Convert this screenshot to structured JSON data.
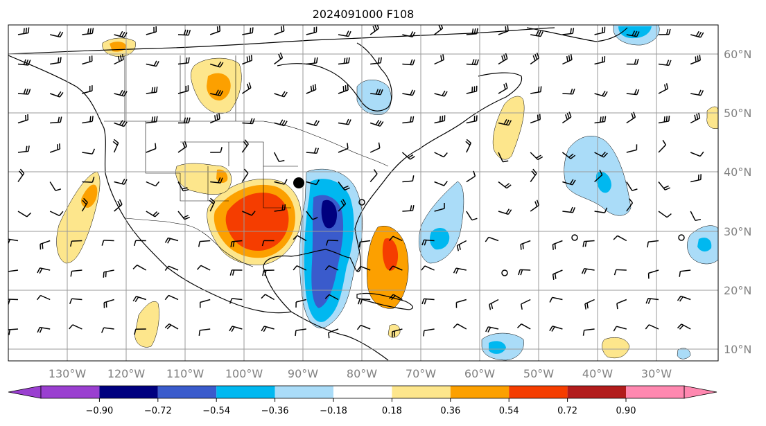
{
  "title": "2024091000 F108",
  "map": {
    "lon_labels": [
      "130°W",
      "120°W",
      "110°W",
      "100°W",
      "90°W",
      "80°W",
      "70°W",
      "60°W",
      "50°W",
      "40°W",
      "30°W"
    ],
    "lat_labels": [
      "60°N",
      "50°N",
      "40°N",
      "30°N",
      "20°N",
      "10°N"
    ],
    "gridline_color": "#9a9a9a",
    "marker": {
      "name": "black-dot",
      "lon": -90.0,
      "lat": 38.2
    }
  },
  "colorbar": {
    "extend": "both",
    "colors": [
      "#9a3fd0",
      "#00007f",
      "#3a5bcc",
      "#00b8f0",
      "#aadcf8",
      "#ffffff",
      "#fde68c",
      "#fca000",
      "#f53d00",
      "#b21c1c",
      "#ff88b0"
    ],
    "tick_labels": [
      "−0.90",
      "−0.72",
      "−0.54",
      "−0.36",
      "−0.18",
      "0.18",
      "0.36",
      "0.54",
      "0.72",
      "0.90"
    ]
  }
}
